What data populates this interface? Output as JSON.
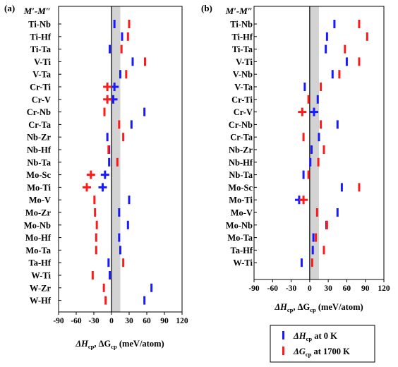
{
  "figure": {
    "legend": {
      "entries": [
        {
          "label": "ΔH",
          "sub": "cp",
          "tail": " at 0 K",
          "color": "#1a1aff"
        },
        {
          "label": "ΔG",
          "sub": "cp",
          "tail": " at 1700 K",
          "color": "#ff1a1a"
        }
      ]
    }
  },
  "chart_data": [
    {
      "type": "scatter",
      "panel_label": "(a)",
      "category_header": "M′-M″",
      "xlabel_parts": {
        "a": "ΔH",
        "a_sub": "cp",
        "mid": ", ΔG",
        "b_sub": "cp",
        "tail": " (meV/atom)"
      },
      "xlim": [
        -90,
        120
      ],
      "xticks": [
        -90,
        -60,
        -30,
        0,
        30,
        60,
        90,
        120
      ],
      "shaded_band": [
        0,
        15
      ],
      "categories": [
        "Ti-Nb",
        "Ti-Hf",
        "Ti-Ta",
        "V-Ti",
        "V-Ta",
        "Cr-Ti",
        "Cr-V",
        "Cr-Nb",
        "Cr-Ta",
        "Nb-Zr",
        "Nb-Hf",
        "Nb-Ta",
        "Mo-Sc",
        "Mo-Ti",
        "Mo-V",
        "Mo-Zr",
        "Mo-Nb",
        "Mo-Hf",
        "Mo-Ta",
        "Ta-Hf",
        "W-Ti",
        "W-Zr",
        "W-Hf"
      ],
      "series": [
        {
          "name": "ΔHcp at 0 K",
          "color": "#1a1aff",
          "values": [
            5,
            18,
            -3,
            36,
            15,
            5,
            3,
            56,
            34,
            -7,
            -4,
            -4,
            -11,
            -15,
            30,
            13,
            28,
            13,
            15,
            -5,
            -3,
            68,
            56
          ],
          "cross": [
            false,
            false,
            false,
            false,
            false,
            true,
            true,
            false,
            false,
            false,
            false,
            false,
            true,
            true,
            false,
            false,
            false,
            false,
            false,
            false,
            false,
            false,
            false
          ]
        },
        {
          "name": "ΔGcp at 1700 K",
          "color": "#ff1a1a",
          "values": [
            30,
            28,
            17,
            57,
            25,
            -7,
            -7,
            -12,
            13,
            20,
            -5,
            10,
            -35,
            -42,
            -29,
            -28,
            -25,
            -26,
            -26,
            20,
            -32,
            -13,
            -10
          ],
          "cross": [
            false,
            false,
            false,
            false,
            false,
            true,
            true,
            false,
            false,
            false,
            false,
            false,
            true,
            true,
            false,
            false,
            false,
            false,
            false,
            false,
            false,
            false,
            false
          ]
        }
      ]
    },
    {
      "type": "scatter",
      "panel_label": "(b)",
      "category_header": "M′-M″",
      "xlabel_parts": {
        "a": "ΔH",
        "a_sub": "cp",
        "mid": ", ΔG",
        "b_sub": "cp",
        "tail": " (meV/atom)"
      },
      "xlim": [
        -90,
        120
      ],
      "xticks": [
        -90,
        -60,
        -30,
        0,
        30,
        60,
        90,
        120
      ],
      "shaded_band": [
        0,
        15
      ],
      "categories": [
        "Ti-Nb",
        "Ti-Hf",
        "Ti-Ta",
        "V-Ti",
        "V-Nb",
        "V-Ta",
        "Cr-Ti",
        "Cr-V",
        "Cr-Nb",
        "Cr-Ta",
        "Nb-Zr",
        "Nb-Hf",
        "Nb-Ta",
        "Mo-Sc",
        "Mo-Ti",
        "Mo-V",
        "Mo-Nb",
        "Mo-Ta",
        "Ta-Hf",
        "W-Ti"
      ],
      "series": [
        {
          "name": "ΔHcp at 0 K",
          "color": "#1a1aff",
          "values": [
            40,
            28,
            26,
            60,
            37,
            -8,
            13,
            7,
            45,
            15,
            3,
            1,
            -10,
            52,
            -17,
            45,
            27,
            6,
            5,
            -13
          ],
          "cross": [
            false,
            false,
            false,
            false,
            false,
            false,
            false,
            true,
            false,
            false,
            false,
            false,
            false,
            false,
            true,
            false,
            false,
            false,
            false,
            false
          ]
        },
        {
          "name": "ΔGcp at 1700 K",
          "color": "#ff1a1a",
          "values": [
            80,
            93,
            57,
            80,
            48,
            18,
            -2,
            -12,
            18,
            -10,
            23,
            14,
            -2,
            80,
            -10,
            12,
            28,
            10,
            23,
            4
          ],
          "cross": [
            false,
            false,
            false,
            false,
            false,
            false,
            false,
            true,
            false,
            false,
            false,
            false,
            false,
            false,
            true,
            false,
            false,
            false,
            false,
            false
          ]
        }
      ]
    }
  ]
}
